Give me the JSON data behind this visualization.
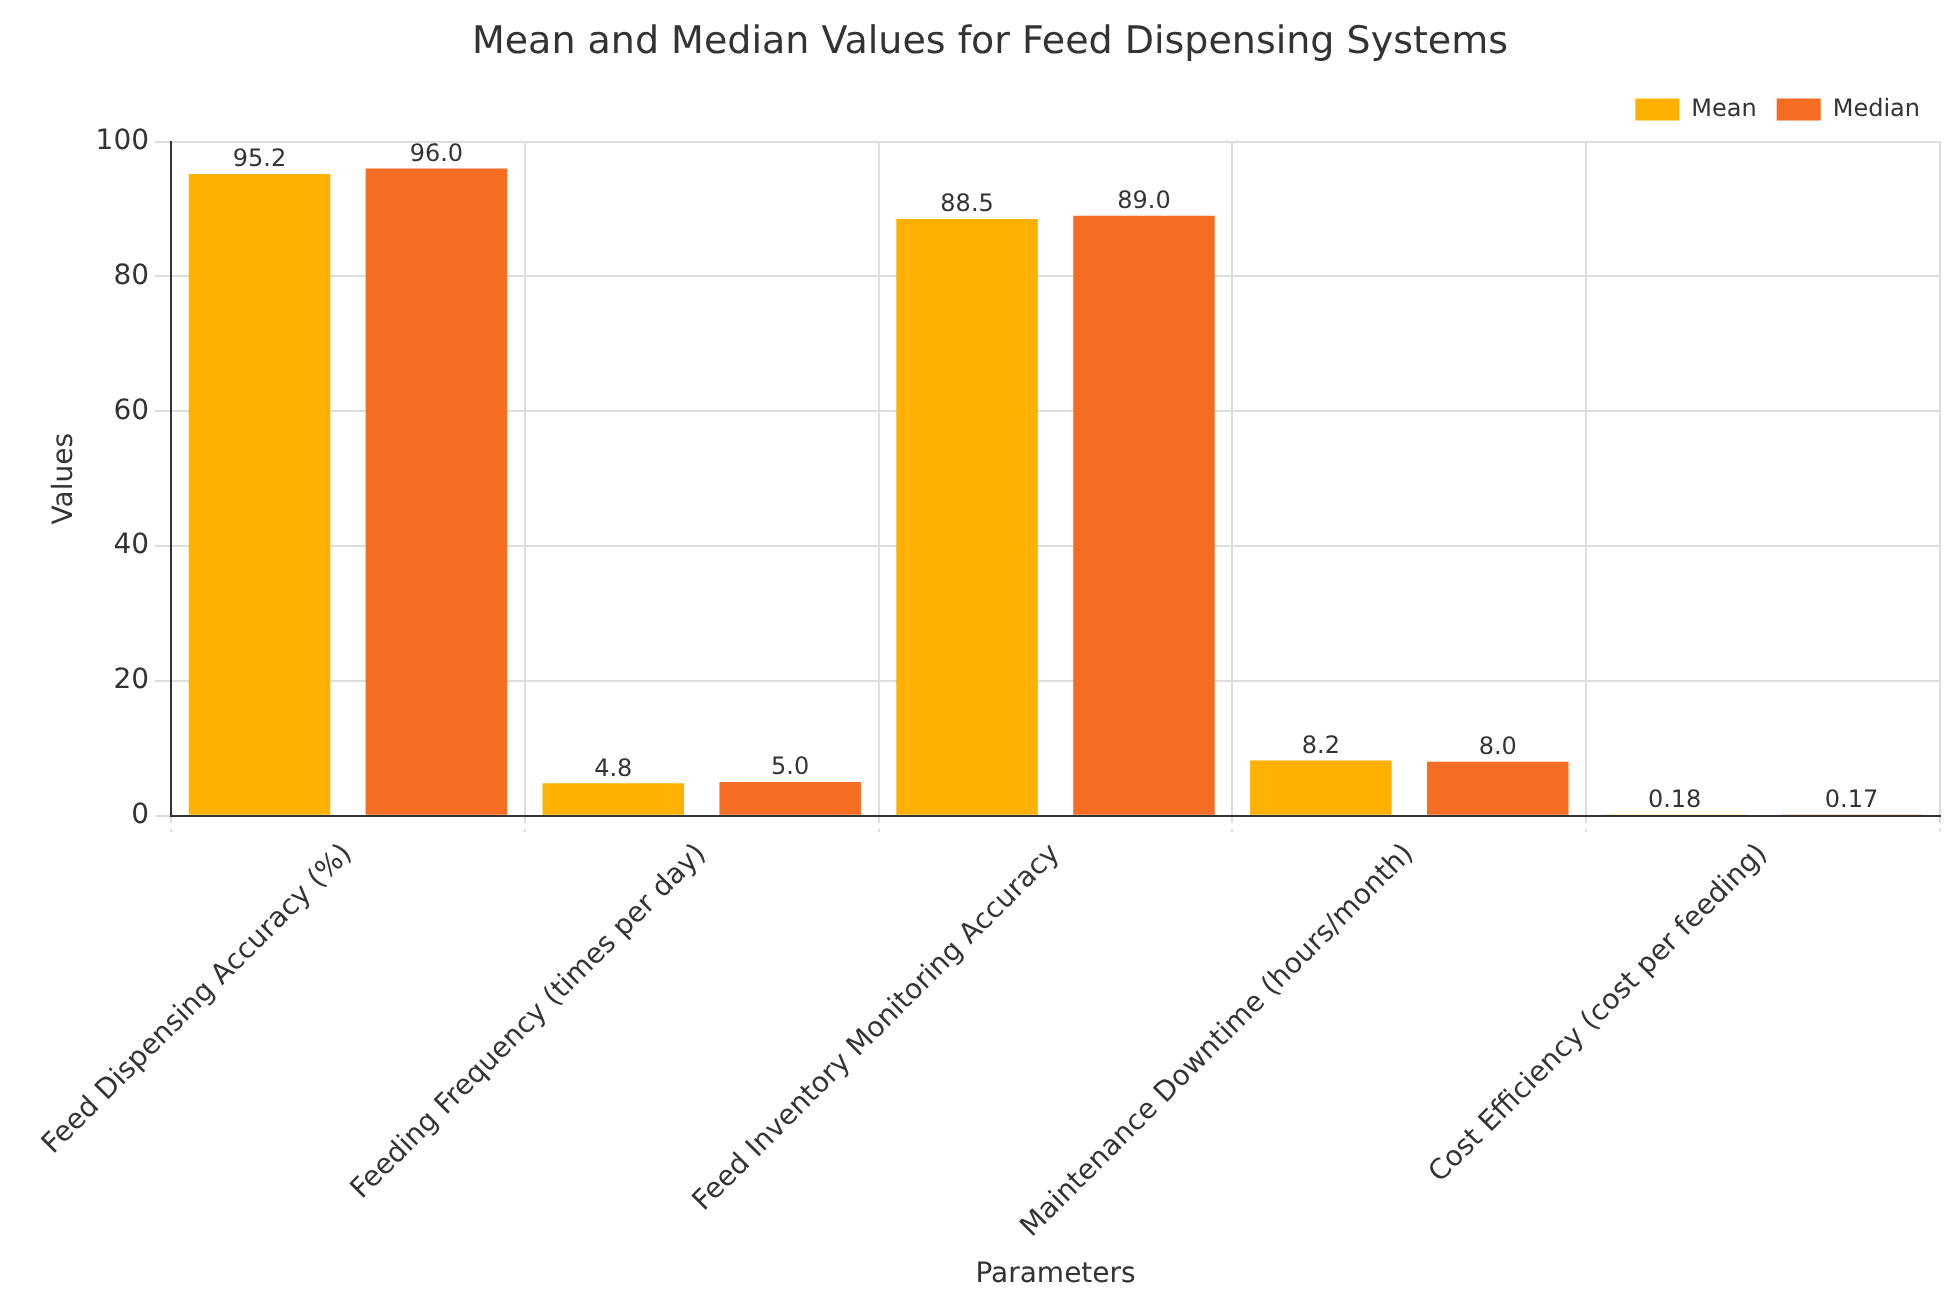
{
  "chart_data": {
    "type": "bar",
    "title": "Mean and Median Values for Feed Dispensing Systems",
    "xlabel": "Parameters",
    "ylabel": "Values",
    "categories": [
      "Feed Dispensing Accuracy (%)",
      "Feeding Frequency (times per day)",
      "Feed Inventory Monitoring Accuracy",
      "Maintenance Downtime (hours/month)",
      "Cost Efficiency (cost per feeding)"
    ],
    "series": [
      {
        "name": "Mean",
        "color": "#ffb000",
        "values": [
          95.2,
          4.8,
          88.5,
          8.2,
          0.18
        ],
        "value_labels": [
          "95.2",
          "4.8",
          "88.5",
          "8.2",
          "0.18"
        ]
      },
      {
        "name": "Median",
        "color": "#f46d22",
        "values": [
          96.0,
          5.0,
          89.0,
          8.0,
          0.17
        ],
        "value_labels": [
          "96.0",
          "5.0",
          "89.0",
          "8.0",
          "0.17"
        ]
      }
    ],
    "ylim": [
      0,
      100
    ],
    "yticks": [
      0,
      20,
      40,
      60,
      80,
      100
    ],
    "grid": true,
    "legend": "top right"
  }
}
